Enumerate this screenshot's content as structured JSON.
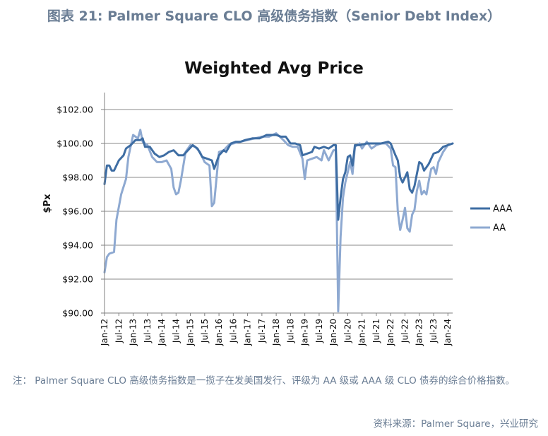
{
  "figure_title": "图表 21: Palmer Square CLO 高级债务指数（Senior Debt Index）",
  "note": "注：   Palmer Square CLO 高级债务指数是一揽子在发美国发行、评级为 AA 级或 AAA 级 CLO 债券的综合价格指数。",
  "source": "资料来源：Palmer Square，兴业研究",
  "chart_data": {
    "type": "line",
    "title": "Weighted Avg Price",
    "ylabel": "$Px",
    "xlabel": "",
    "ylim": [
      90,
      103
    ],
    "xlim": [
      "2012-01",
      "2024-03"
    ],
    "grid": "horizontal",
    "legend_position": "right",
    "y_ticks": [
      "$102.00",
      "$100.00",
      "$98.00",
      "$96.00",
      "$94.00",
      "$92.00",
      "$90.00"
    ],
    "y_tick_values": [
      102,
      100,
      98,
      96,
      94,
      92,
      90
    ],
    "x_ticks": [
      "Jan-12",
      "Jul-12",
      "Jan-13",
      "Jul-13",
      "Jan-14",
      "Jul-14",
      "Jan-15",
      "Jul-15",
      "Jan-16",
      "Jul-16",
      "Jan-17",
      "Jul-17",
      "Jan-18",
      "Jul-18",
      "Jan-19",
      "Jul-19",
      "Jan-20",
      "Jul-20",
      "Jan-21",
      "Jul-21",
      "Jan-22",
      "Jul-22",
      "Jan-23",
      "Jul-23",
      "Jan-24"
    ],
    "series": [
      {
        "name": "AAA",
        "color": "#3e6da3",
        "points": [
          [
            "2012-01",
            97.6
          ],
          [
            "2012-02",
            98.7
          ],
          [
            "2012-03",
            98.7
          ],
          [
            "2012-04",
            98.4
          ],
          [
            "2012-05",
            98.4
          ],
          [
            "2012-07",
            99.0
          ],
          [
            "2012-09",
            99.3
          ],
          [
            "2012-10",
            99.7
          ],
          [
            "2012-12",
            99.9
          ],
          [
            "2013-02",
            100.2
          ],
          [
            "2013-04",
            100.2
          ],
          [
            "2013-05",
            100.3
          ],
          [
            "2013-06",
            99.8
          ],
          [
            "2013-08",
            99.8
          ],
          [
            "2013-10",
            99.4
          ],
          [
            "2013-12",
            99.2
          ],
          [
            "2014-02",
            99.3
          ],
          [
            "2014-04",
            99.5
          ],
          [
            "2014-06",
            99.6
          ],
          [
            "2014-08",
            99.3
          ],
          [
            "2014-10",
            99.3
          ],
          [
            "2014-12",
            99.6
          ],
          [
            "2015-02",
            99.9
          ],
          [
            "2015-04",
            99.7
          ],
          [
            "2015-06",
            99.2
          ],
          [
            "2015-08",
            99.1
          ],
          [
            "2015-10",
            99.0
          ],
          [
            "2015-11",
            98.5
          ],
          [
            "2015-12",
            98.9
          ],
          [
            "2016-01",
            99.3
          ],
          [
            "2016-03",
            99.6
          ],
          [
            "2016-04",
            99.5
          ],
          [
            "2016-06",
            100.0
          ],
          [
            "2016-08",
            100.1
          ],
          [
            "2016-10",
            100.1
          ],
          [
            "2016-12",
            100.2
          ],
          [
            "2017-03",
            100.3
          ],
          [
            "2017-06",
            100.3
          ],
          [
            "2017-09",
            100.5
          ],
          [
            "2017-11",
            100.5
          ],
          [
            "2018-01",
            100.5
          ],
          [
            "2018-03",
            100.4
          ],
          [
            "2018-05",
            100.4
          ],
          [
            "2018-07",
            100.0
          ],
          [
            "2018-09",
            100.0
          ],
          [
            "2018-11",
            99.9
          ],
          [
            "2018-12",
            99.3
          ],
          [
            "2019-02",
            99.4
          ],
          [
            "2019-04",
            99.5
          ],
          [
            "2019-05",
            99.8
          ],
          [
            "2019-07",
            99.7
          ],
          [
            "2019-09",
            99.8
          ],
          [
            "2019-11",
            99.7
          ],
          [
            "2020-01",
            99.9
          ],
          [
            "2020-02",
            99.9
          ],
          [
            "2020-03",
            95.5
          ],
          [
            "2020-04",
            96.8
          ],
          [
            "2020-05",
            97.9
          ],
          [
            "2020-06",
            98.3
          ],
          [
            "2020-07",
            99.2
          ],
          [
            "2020-08",
            99.3
          ],
          [
            "2020-09",
            98.7
          ],
          [
            "2020-10",
            99.9
          ],
          [
            "2020-12",
            99.9
          ],
          [
            "2021-03",
            100.0
          ],
          [
            "2021-06",
            100.0
          ],
          [
            "2021-09",
            100.0
          ],
          [
            "2021-12",
            100.1
          ],
          [
            "2022-01",
            100.0
          ],
          [
            "2022-03",
            99.3
          ],
          [
            "2022-04",
            99.0
          ],
          [
            "2022-05",
            98.0
          ],
          [
            "2022-06",
            97.7
          ],
          [
            "2022-07",
            98.0
          ],
          [
            "2022-08",
            98.3
          ],
          [
            "2022-09",
            97.3
          ],
          [
            "2022-10",
            97.1
          ],
          [
            "2022-11",
            97.5
          ],
          [
            "2022-12",
            98.2
          ],
          [
            "2023-01",
            98.9
          ],
          [
            "2023-02",
            98.8
          ],
          [
            "2023-03",
            98.4
          ],
          [
            "2023-04",
            98.6
          ],
          [
            "2023-05",
            98.8
          ],
          [
            "2023-07",
            99.4
          ],
          [
            "2023-09",
            99.5
          ],
          [
            "2023-11",
            99.8
          ],
          [
            "2024-01",
            99.9
          ],
          [
            "2024-03",
            100.0
          ]
        ]
      },
      {
        "name": "AA",
        "color": "#8ea9d1",
        "points": [
          [
            "2012-01",
            92.4
          ],
          [
            "2012-02",
            93.3
          ],
          [
            "2012-03",
            93.5
          ],
          [
            "2012-05",
            93.6
          ],
          [
            "2012-06",
            95.5
          ],
          [
            "2012-08",
            97.0
          ],
          [
            "2012-10",
            97.9
          ],
          [
            "2012-11",
            99.2
          ],
          [
            "2013-01",
            100.5
          ],
          [
            "2013-03",
            100.3
          ],
          [
            "2013-04",
            100.8
          ],
          [
            "2013-05",
            100.1
          ],
          [
            "2013-07",
            99.9
          ],
          [
            "2013-09",
            99.2
          ],
          [
            "2013-11",
            98.9
          ],
          [
            "2014-01",
            98.9
          ],
          [
            "2014-03",
            99.0
          ],
          [
            "2014-05",
            98.5
          ],
          [
            "2014-06",
            97.4
          ],
          [
            "2014-07",
            97.0
          ],
          [
            "2014-08",
            97.1
          ],
          [
            "2014-09",
            97.8
          ],
          [
            "2014-11",
            99.5
          ],
          [
            "2015-01",
            99.9
          ],
          [
            "2015-03",
            99.8
          ],
          [
            "2015-05",
            99.5
          ],
          [
            "2015-07",
            98.9
          ],
          [
            "2015-09",
            98.7
          ],
          [
            "2015-10",
            96.3
          ],
          [
            "2015-11",
            96.5
          ],
          [
            "2016-01",
            99.5
          ],
          [
            "2016-03",
            99.6
          ],
          [
            "2016-05",
            99.9
          ],
          [
            "2016-07",
            100.0
          ],
          [
            "2016-10",
            100.1
          ],
          [
            "2017-01",
            100.2
          ],
          [
            "2017-04",
            100.3
          ],
          [
            "2017-07",
            100.4
          ],
          [
            "2017-10",
            100.4
          ],
          [
            "2018-01",
            100.6
          ],
          [
            "2018-04",
            100.2
          ],
          [
            "2018-06",
            99.9
          ],
          [
            "2018-08",
            99.8
          ],
          [
            "2018-10",
            99.8
          ],
          [
            "2018-12",
            99.1
          ],
          [
            "2019-01",
            97.9
          ],
          [
            "2019-02",
            99.0
          ],
          [
            "2019-04",
            99.1
          ],
          [
            "2019-06",
            99.2
          ],
          [
            "2019-08",
            99.0
          ],
          [
            "2019-09",
            99.6
          ],
          [
            "2019-11",
            99.0
          ],
          [
            "2020-01",
            99.6
          ],
          [
            "2020-02",
            99.6
          ],
          [
            "2020-03",
            90.1
          ],
          [
            "2020-04",
            94.5
          ],
          [
            "2020-05",
            96.8
          ],
          [
            "2020-06",
            97.7
          ],
          [
            "2020-07",
            98.3
          ],
          [
            "2020-08",
            98.9
          ],
          [
            "2020-09",
            98.2
          ],
          [
            "2020-10",
            99.8
          ],
          [
            "2020-12",
            100.0
          ],
          [
            "2021-01",
            99.7
          ],
          [
            "2021-03",
            100.1
          ],
          [
            "2021-05",
            99.7
          ],
          [
            "2021-07",
            99.9
          ],
          [
            "2021-09",
            100.0
          ],
          [
            "2021-11",
            100.0
          ],
          [
            "2022-01",
            99.7
          ],
          [
            "2022-02",
            98.7
          ],
          [
            "2022-03",
            98.6
          ],
          [
            "2022-04",
            96.0
          ],
          [
            "2022-05",
            94.9
          ],
          [
            "2022-06",
            95.5
          ],
          [
            "2022-07",
            96.2
          ],
          [
            "2022-08",
            95.0
          ],
          [
            "2022-09",
            94.8
          ],
          [
            "2022-10",
            95.8
          ],
          [
            "2022-11",
            96.1
          ],
          [
            "2022-12",
            97.2
          ],
          [
            "2023-01",
            97.8
          ],
          [
            "2023-02",
            97.0
          ],
          [
            "2023-03",
            97.2
          ],
          [
            "2023-04",
            97.0
          ],
          [
            "2023-05",
            97.8
          ],
          [
            "2023-06",
            98.5
          ],
          [
            "2023-07",
            98.6
          ],
          [
            "2023-08",
            98.2
          ],
          [
            "2023-09",
            98.9
          ],
          [
            "2023-11",
            99.5
          ],
          [
            "2024-01",
            99.9
          ],
          [
            "2024-03",
            100.0
          ]
        ]
      }
    ]
  }
}
